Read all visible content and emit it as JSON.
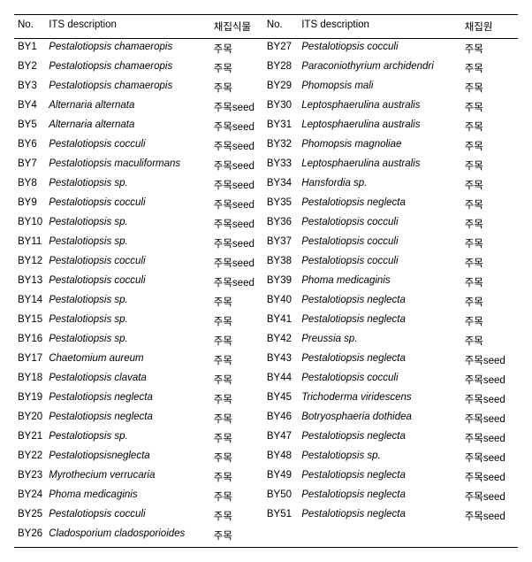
{
  "headers": {
    "no_l": "No.",
    "its_l": "ITS description",
    "src_l": "채집식물",
    "no_r": "No.",
    "its_r": "ITS description",
    "src_r": "채집원"
  },
  "rows": [
    {
      "l_no": "BY1",
      "l_its": "Pestalotiopsis chamaeropis",
      "l_src": "주목",
      "r_no": "BY27",
      "r_its": "Pestalotiopsis cocculi",
      "r_src": "주목"
    },
    {
      "l_no": "BY2",
      "l_its": "Pestalotiopsis chamaeropis",
      "l_src": "주목",
      "r_no": "BY28",
      "r_its": "Paraconiothyrium archidendri",
      "r_src": "주목"
    },
    {
      "l_no": "BY3",
      "l_its": "Pestalotiopsis chamaeropis",
      "l_src": "주목",
      "r_no": "BY29",
      "r_its": "Phomopsis mali",
      "r_src": "주목"
    },
    {
      "l_no": "BY4",
      "l_its": "Alternaria alternata",
      "l_src": "주목seed",
      "r_no": "BY30",
      "r_its": "Leptosphaerulina australis",
      "r_src": "주목"
    },
    {
      "l_no": "BY5",
      "l_its": "Alternaria alternata",
      "l_src": "주목seed",
      "r_no": "BY31",
      "r_its": "Leptosphaerulina australis",
      "r_src": "주목"
    },
    {
      "l_no": "BY6",
      "l_its": "Pestalotiopsis cocculi",
      "l_src": "주목seed",
      "r_no": "BY32",
      "r_its": "Phomopsis magnoliae",
      "r_src": "주목"
    },
    {
      "l_no": "BY7",
      "l_its": "Pestalotiopsis maculiformans",
      "l_src": "주목seed",
      "r_no": "BY33",
      "r_its": "Leptosphaerulina australis",
      "r_src": "주목"
    },
    {
      "l_no": "BY8",
      "l_its": "Pestalotiopsis sp.",
      "l_src": "주목seed",
      "r_no": "BY34",
      "r_its": "Hansfordia sp.",
      "r_src": "주목"
    },
    {
      "l_no": "BY9",
      "l_its": "Pestalotiopsis cocculi",
      "l_src": "주목seed",
      "r_no": "BY35",
      "r_its": "Pestalotiopsis neglecta",
      "r_src": "주목"
    },
    {
      "l_no": "BY10",
      "l_its": "Pestalotiopsis sp.",
      "l_src": "주목seed",
      "r_no": "BY36",
      "r_its": "Pestalotiopsis cocculi",
      "r_src": "주목"
    },
    {
      "l_no": "BY11",
      "l_its": "Pestalotiopsis sp.",
      "l_src": "주목seed",
      "r_no": "BY37",
      "r_its": "Pestalotiopsis cocculi",
      "r_src": "주목"
    },
    {
      "l_no": "BY12",
      "l_its": "Pestalotiopsis cocculi",
      "l_src": "주목seed",
      "r_no": "BY38",
      "r_its": "Pestalotiopsis cocculi",
      "r_src": "주목"
    },
    {
      "l_no": "BY13",
      "l_its": "Pestalotiopsis cocculi",
      "l_src": "주목seed",
      "r_no": "BY39",
      "r_its": "Phoma medicaginis",
      "r_src": "주목"
    },
    {
      "l_no": "BY14",
      "l_its": "Pestalotiopsis sp.",
      "l_src": "주목",
      "r_no": "BY40",
      "r_its": "Pestalotiopsis neglecta",
      "r_src": "주목"
    },
    {
      "l_no": "BY15",
      "l_its": "Pestalotiopsis sp.",
      "l_src": "주목",
      "r_no": "BY41",
      "r_its": "Pestalotiopsis neglecta",
      "r_src": "주목"
    },
    {
      "l_no": "BY16",
      "l_its": "Pestalotiopsis sp.",
      "l_src": "주목",
      "r_no": "BY42",
      "r_its": "Preussia sp.",
      "r_src": "주목"
    },
    {
      "l_no": "BY17",
      "l_its": "Chaetomium aureum",
      "l_src": "주목",
      "r_no": "BY43",
      "r_its": "Pestalotiopsis neglecta",
      "r_src": "주목seed"
    },
    {
      "l_no": "BY18",
      "l_its": "Pestalotiopsis clavata",
      "l_src": "주목",
      "r_no": "BY44",
      "r_its": "Pestalotiopsis cocculi",
      "r_src": "주목seed"
    },
    {
      "l_no": "BY19",
      "l_its": "Pestalotiopsis neglecta",
      "l_src": "주목",
      "r_no": "BY45",
      "r_its": "Trichoderma viridescens",
      "r_src": "주목seed"
    },
    {
      "l_no": "BY20",
      "l_its": "Pestalotiopsis neglecta",
      "l_src": "주목",
      "r_no": "BY46",
      "r_its": "Botryosphaeria dothidea",
      "r_src": "주목seed"
    },
    {
      "l_no": "BY21",
      "l_its": "Pestalotiopsis sp.",
      "l_src": "주목",
      "r_no": "BY47",
      "r_its": "Pestalotiopsis neglecta",
      "r_src": "주목seed"
    },
    {
      "l_no": "BY22",
      "l_its": "Pestalotiopsisneglecta",
      "l_src": "주목",
      "r_no": "BY48",
      "r_its": "Pestalotiopsis sp.",
      "r_src": "주목seed"
    },
    {
      "l_no": "BY23",
      "l_its": "Myrothecium verrucaria",
      "l_src": "주목",
      "r_no": "BY49",
      "r_its": "Pestalotiopsis neglecta",
      "r_src": "주목seed"
    },
    {
      "l_no": "BY24",
      "l_its": "Phoma medicaginis",
      "l_src": "주목",
      "r_no": "BY50",
      "r_its": "Pestalotiopsis neglecta",
      "r_src": "주목seed"
    },
    {
      "l_no": "BY25",
      "l_its": "Pestalotiopsis cocculi",
      "l_src": "주목",
      "r_no": "BY51",
      "r_its": "Pestalotiopsis neglecta",
      "r_src": "주목seed"
    },
    {
      "l_no": "BY26",
      "l_its": "Cladosporium cladosporioides",
      "l_src": "주목",
      "r_no": "",
      "r_its": "",
      "r_src": ""
    }
  ]
}
